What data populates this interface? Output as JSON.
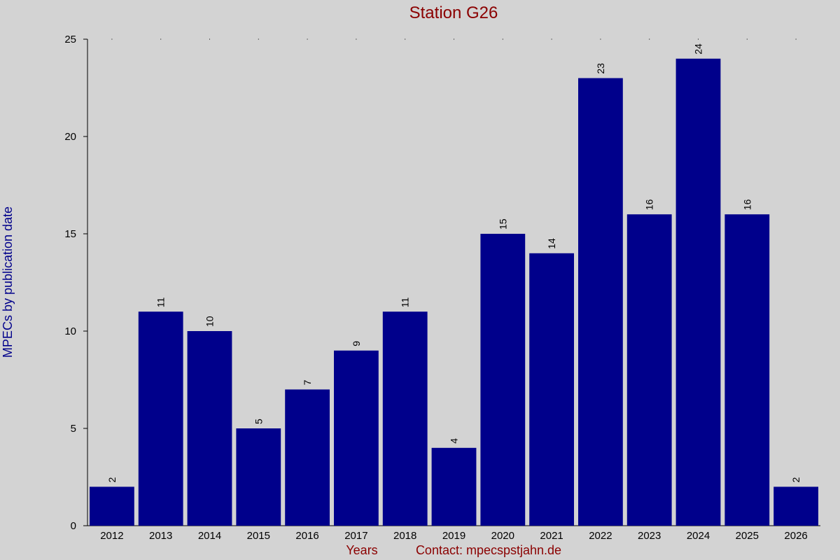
{
  "chart_data": {
    "type": "bar",
    "title": "Station G26",
    "xlabel": "Years",
    "ylabel": "MPECs by publication date",
    "footer_contact": "Contact: mpecspstjahn.de",
    "categories": [
      "2012",
      "2013",
      "2014",
      "2015",
      "2016",
      "2017",
      "2018",
      "2019",
      "2020",
      "2021",
      "2022",
      "2023",
      "2024",
      "2025",
      "2026"
    ],
    "values": [
      2,
      11,
      10,
      5,
      7,
      9,
      11,
      4,
      15,
      14,
      23,
      16,
      24,
      16,
      2
    ],
    "ylim": [
      0,
      25
    ],
    "yticks": [
      0,
      5,
      10,
      15,
      20,
      25
    ],
    "bar_color": "#00008b",
    "background_color": "#d3d3d3",
    "title_color": "#8b0000",
    "ylabel_color": "#00008b",
    "grid": false,
    "data_labels": true
  }
}
